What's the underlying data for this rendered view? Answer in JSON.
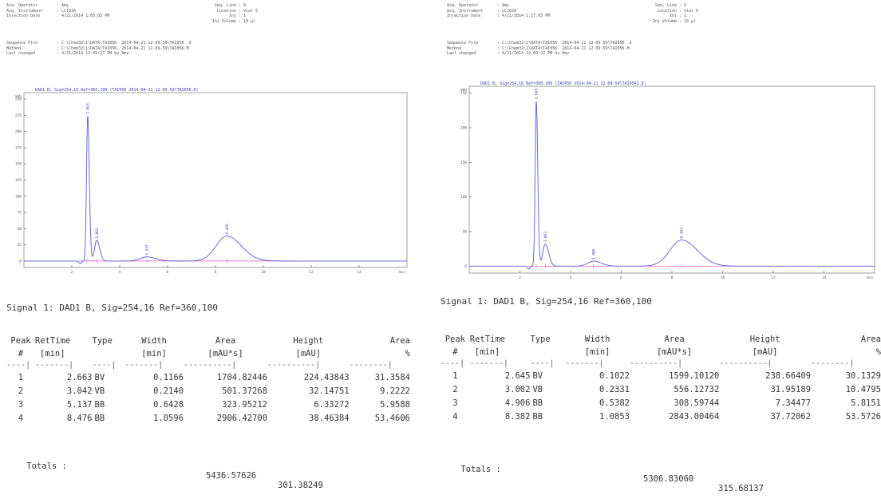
{
  "panels": [
    {
      "meta": {
        "left": [
          {
            "k": "Acq. Operator",
            "v": "Amy"
          },
          {
            "k": "Acq. Instrument",
            "v": "LC1026"
          },
          {
            "k": "Injection Date",
            "v": "4/21/2014 1:05:05 PM"
          }
        ],
        "right": [
          {
            "k": "Seq. Line",
            "v": "8"
          },
          {
            "k": "Location",
            "v": "Vial 5"
          },
          {
            "k": "Inj",
            "v": "1"
          },
          {
            "k": "Inj Volume",
            "v": "10 µl"
          }
        ],
        "bottom": [
          {
            "k": "Sequence File",
            "v": "C:\\Chem32\\1\\DATA\\TAI05K  2014-04-21 12-09-59\\TAI05K .S"
          },
          {
            "k": "Method",
            "v": "C:\\Chem32\\1\\DATA\\TAI05K  2014-04-21 12-09-59\\TAI05K.M"
          },
          {
            "k": "Last changed",
            "v": "4/21/2014 12:09:27 PM by Amy"
          }
        ]
      },
      "chart_data": {
        "type": "line",
        "title": "DAD1 B, Sig=254,16 Ref=360,100 (TAI05K 2014-04-21 12-09-59\\TAI05K.D)",
        "ylabel": "mAU",
        "xlabel": "min",
        "xlim": [
          0,
          16
        ],
        "ylim": [
          -10,
          260
        ],
        "xticks": [
          2,
          4,
          6,
          8,
          10,
          12,
          14
        ],
        "yticks": [
          0,
          25,
          50,
          75,
          100,
          125,
          150,
          175,
          200,
          225,
          250
        ],
        "ytick_labels": [
          "0",
          "25",
          "50",
          "75",
          "100",
          "125",
          "150",
          "175",
          "200",
          "225",
          "250"
        ],
        "peaks": [
          {
            "rt": 2.663,
            "height": 224.43843,
            "width": 0.1166,
            "label": "2.663"
          },
          {
            "rt": 3.042,
            "height": 32.14751,
            "width": 0.214,
            "label": "3.042"
          },
          {
            "rt": 5.137,
            "height": 6.33272,
            "width": 0.6428,
            "label": "5.137"
          },
          {
            "rt": 8.476,
            "height": 38.46384,
            "width": 1.0596,
            "label": "8.476"
          }
        ]
      },
      "signal": "Signal 1: DAD1 B, Sig=254,16 Ref=360,100",
      "table": {
        "head1": [
          "Peak",
          "RetTime",
          "Type",
          "Width",
          "Area",
          "Height",
          "Area"
        ],
        "head2": [
          "#",
          "[min]",
          "",
          "[min]",
          "[mAU*s]",
          "[mAU]",
          "%"
        ],
        "dashes": [
          "----|",
          "-------|",
          "----|",
          "-------|",
          "----------|",
          "----------|",
          "--------|"
        ],
        "rows": [
          [
            "1",
            "2.663",
            "BV",
            "0.1166",
            "1704.82446",
            "224.43843",
            "31.3584"
          ],
          [
            "2",
            "3.042",
            "VB",
            "0.2140",
            "501.37268",
            "32.14751",
            "9.2222"
          ],
          [
            "3",
            "5.137",
            "BB",
            "0.6428",
            "323.95212",
            "6.33272",
            "5.9588"
          ],
          [
            "4",
            "8.476",
            "BB",
            "1.0596",
            "2906.42700",
            "38.46384",
            "53.4606"
          ]
        ],
        "totals_label": "Totals :",
        "totals_area": "5436.57626",
        "totals_height": "301.38249"
      }
    },
    {
      "meta": {
        "left": [
          {
            "k": "Acq. Operator",
            "v": "Amy"
          },
          {
            "k": "Acq. Instrument",
            "v": "LC1026"
          },
          {
            "k": "Injection Date",
            "v": "4/21/2014 1:17:05 PM"
          }
        ],
        "right": [
          {
            "k": "Seq. Line",
            "v": "9"
          },
          {
            "k": "Location",
            "v": "Vial 6"
          },
          {
            "k": "Inj",
            "v": "1"
          },
          {
            "k": "Inj Volume",
            "v": "10 µl"
          }
        ],
        "bottom": [
          {
            "k": "Sequence File",
            "v": "C:\\Chem32\\1\\DATA\\TAI05K  2014-04-21 12-09-59\\TAI05K .S"
          },
          {
            "k": "Method",
            "v": "C:\\Chem32\\1\\DATA\\TAI05K  2014-04-21 12-09-59\\TAI05K.M"
          },
          {
            "k": "Last changed",
            "v": "4/21/2014 12:09:27 PM by Amy"
          }
        ]
      },
      "chart_data": {
        "type": "line",
        "title": "DAD1 B, Sig=254,16 Ref=360,100 (TAI05K 2014-04-21 12-09-59\\TAI05K2.D)",
        "ylabel": "mAU",
        "xlabel": "min",
        "xlim": [
          0,
          16
        ],
        "ylim": [
          -10,
          260
        ],
        "xticks": [
          2,
          4,
          6,
          8,
          10,
          12,
          14
        ],
        "yticks": [
          0,
          50,
          100,
          150,
          200,
          250
        ],
        "ytick_labels": [
          "0",
          "50",
          "100",
          "150",
          "200",
          "250"
        ],
        "peaks": [
          {
            "rt": 2.645,
            "height": 238.66409,
            "width": 0.1022,
            "label": "2.645"
          },
          {
            "rt": 3.002,
            "height": 31.95189,
            "width": 0.2331,
            "label": "3.002"
          },
          {
            "rt": 4.906,
            "height": 7.34477,
            "width": 0.5382,
            "label": "4.906"
          },
          {
            "rt": 8.382,
            "height": 37.72062,
            "width": 1.0853,
            "label": "8.382"
          }
        ]
      },
      "signal": "Signal 1: DAD1 B, Sig=254,16 Ref=360,100",
      "table": {
        "head1": [
          "Peak",
          "RetTime",
          "Type",
          "Width",
          "Area",
          "Height",
          "Area"
        ],
        "head2": [
          "#",
          "[min]",
          "",
          "[min]",
          "[mAU*s]",
          "[mAU]",
          "%"
        ],
        "dashes": [
          "----|",
          "-------|",
          "----|",
          "-------|",
          "----------|",
          "----------|",
          "--------|"
        ],
        "rows": [
          [
            "1",
            "2.645",
            "BV",
            "0.1022",
            "1599.10120",
            "238.66409",
            "30.1329"
          ],
          [
            "2",
            "3.002",
            "VB",
            "0.2331",
            "556.12732",
            "31.95189",
            "10.4795"
          ],
          [
            "3",
            "4.906",
            "BB",
            "0.5382",
            "308.59744",
            "7.34477",
            "5.8151"
          ],
          [
            "4",
            "8.382",
            "BB",
            "1.0853",
            "2843.00464",
            "37.72062",
            "53.5726"
          ]
        ],
        "totals_label": "Totals :",
        "totals_area": "5306.83060",
        "totals_height": "315.68137"
      }
    }
  ],
  "colors": {
    "trace": "#5b5bd6",
    "baseline": "#d94fc2",
    "label": "#3b3bb8",
    "axis": "#444444",
    "frame": "#888888"
  }
}
